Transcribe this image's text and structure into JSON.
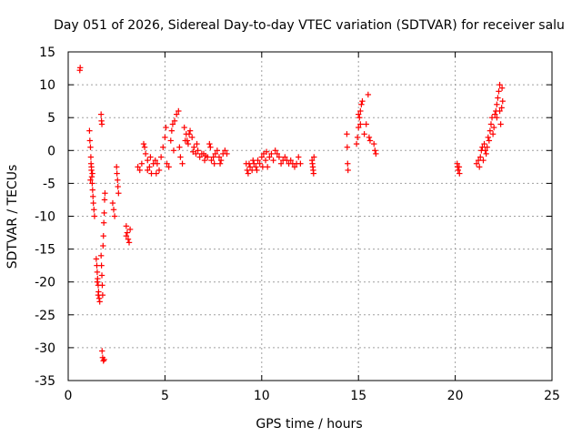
{
  "chart_data": {
    "type": "scatter",
    "title": "Day 051 of 2026, Sidereal Day-to-day VTEC variation (SDTVAR) for receiver salu",
    "xlabel": "GPS time / hours",
    "ylabel": "SDTVAR / TECUs",
    "xlim": [
      0,
      25
    ],
    "ylim": [
      -35,
      15
    ],
    "xticks": [
      0,
      5,
      10,
      15,
      20,
      25
    ],
    "yticks": [
      15,
      10,
      5,
      0,
      -5,
      -10,
      -15,
      -20,
      -25,
      -30,
      -35
    ],
    "grid": true,
    "marker": "+",
    "color": "#ff0000",
    "series": [
      {
        "name": "SDTVAR",
        "points": [
          [
            0.6,
            12.2
          ],
          [
            0.62,
            12.6
          ],
          [
            1.1,
            3.0
          ],
          [
            1.12,
            1.5
          ],
          [
            1.15,
            0.5
          ],
          [
            1.17,
            -1.0
          ],
          [
            1.18,
            -2.0
          ],
          [
            1.2,
            -3.0
          ],
          [
            1.22,
            -4.0
          ],
          [
            1.24,
            -5.0
          ],
          [
            1.26,
            -6.0
          ],
          [
            1.28,
            -7.0
          ],
          [
            1.3,
            -8.0
          ],
          [
            1.33,
            -9.0
          ],
          [
            1.36,
            -10.0
          ],
          [
            1.2,
            -2.5
          ],
          [
            1.25,
            -3.5
          ],
          [
            1.15,
            -4.5
          ],
          [
            1.45,
            -16.5
          ],
          [
            1.48,
            -17.5
          ],
          [
            1.5,
            -18.5
          ],
          [
            1.52,
            -19.5
          ],
          [
            1.55,
            -20.5
          ],
          [
            1.57,
            -21.5
          ],
          [
            1.6,
            -22.5
          ],
          [
            1.63,
            -23.0
          ],
          [
            1.55,
            -22.0
          ],
          [
            1.5,
            -20.0
          ],
          [
            1.7,
            5.5
          ],
          [
            1.72,
            4.5
          ],
          [
            1.74,
            4.0
          ],
          [
            1.7,
            -16.0
          ],
          [
            1.72,
            -17.5
          ],
          [
            1.74,
            -19.0
          ],
          [
            1.76,
            -20.5
          ],
          [
            1.78,
            -22.0
          ],
          [
            1.8,
            -14.5
          ],
          [
            1.82,
            -13.0
          ],
          [
            1.84,
            -11.0
          ],
          [
            1.86,
            -9.5
          ],
          [
            1.88,
            -7.5
          ],
          [
            1.9,
            -6.5
          ],
          [
            1.75,
            -30.5
          ],
          [
            1.78,
            -31.5
          ],
          [
            1.82,
            -32.0
          ],
          [
            1.86,
            -31.8
          ],
          [
            2.3,
            -8.0
          ],
          [
            2.35,
            -9.0
          ],
          [
            2.4,
            -10.0
          ],
          [
            2.5,
            -2.5
          ],
          [
            2.52,
            -3.5
          ],
          [
            2.55,
            -4.5
          ],
          [
            2.57,
            -5.5
          ],
          [
            2.6,
            -6.5
          ],
          [
            3.0,
            -11.5
          ],
          [
            3.05,
            -12.5
          ],
          [
            3.1,
            -13.5
          ],
          [
            3.15,
            -14.0
          ],
          [
            3.0,
            -13.0
          ],
          [
            3.2,
            -12.0
          ],
          [
            3.6,
            -2.5
          ],
          [
            3.7,
            -3.0
          ],
          [
            3.8,
            -2.0
          ],
          [
            3.9,
            1.0
          ],
          [
            3.95,
            0.5
          ],
          [
            4.0,
            -0.5
          ],
          [
            4.1,
            -1.5
          ],
          [
            4.2,
            -2.5
          ],
          [
            4.3,
            -3.5
          ],
          [
            4.4,
            -2.0
          ],
          [
            4.5,
            -1.5
          ],
          [
            4.6,
            -2.0
          ],
          [
            4.7,
            -3.0
          ],
          [
            4.8,
            -1.0
          ],
          [
            4.9,
            0.5
          ],
          [
            5.0,
            2.0
          ],
          [
            5.05,
            3.5
          ],
          [
            5.1,
            -2.0
          ],
          [
            5.2,
            -2.5
          ],
          [
            5.3,
            1.5
          ],
          [
            5.35,
            3.0
          ],
          [
            5.4,
            4.0
          ],
          [
            5.5,
            4.5
          ],
          [
            5.6,
            5.5
          ],
          [
            5.7,
            6.0
          ],
          [
            5.75,
            0.5
          ],
          [
            5.8,
            -1.0
          ],
          [
            5.9,
            -2.0
          ],
          [
            4.1,
            -3.0
          ],
          [
            4.25,
            -1.0
          ],
          [
            4.55,
            -3.5
          ],
          [
            5.45,
            0.0
          ],
          [
            6.0,
            3.5
          ],
          [
            6.1,
            2.5
          ],
          [
            6.15,
            1.5
          ],
          [
            6.2,
            1.0
          ],
          [
            6.3,
            3.0
          ],
          [
            6.4,
            2.0
          ],
          [
            6.5,
            0.5
          ],
          [
            6.6,
            -0.5
          ],
          [
            6.7,
            0.0
          ],
          [
            6.8,
            -1.0
          ],
          [
            6.9,
            -0.5
          ],
          [
            7.0,
            -0.5
          ],
          [
            7.1,
            -0.8
          ],
          [
            7.2,
            -1.0
          ],
          [
            7.3,
            1.0
          ],
          [
            7.4,
            -1.5
          ],
          [
            7.5,
            -1.0
          ],
          [
            7.6,
            -0.5
          ],
          [
            7.7,
            0.0
          ],
          [
            7.8,
            -1.0
          ],
          [
            7.9,
            -1.5
          ],
          [
            8.0,
            -0.5
          ],
          [
            8.1,
            0.0
          ],
          [
            8.2,
            -0.5
          ],
          [
            6.05,
            1.5
          ],
          [
            6.25,
            2.5
          ],
          [
            6.45,
            -0.2
          ],
          [
            6.65,
            1.0
          ],
          [
            7.05,
            -1.5
          ],
          [
            7.35,
            0.5
          ],
          [
            7.55,
            -2.0
          ],
          [
            7.85,
            -2.0
          ],
          [
            9.2,
            -2.0
          ],
          [
            9.25,
            -3.0
          ],
          [
            9.3,
            -3.5
          ],
          [
            9.4,
            -2.5
          ],
          [
            9.5,
            -3.0
          ],
          [
            9.6,
            -2.0
          ],
          [
            9.7,
            -2.5
          ],
          [
            9.8,
            -1.5
          ],
          [
            9.9,
            -2.0
          ],
          [
            10.0,
            -1.0
          ],
          [
            10.1,
            -0.5
          ],
          [
            10.2,
            -1.5
          ],
          [
            10.3,
            -2.5
          ],
          [
            10.4,
            -1.0
          ],
          [
            10.5,
            -0.5
          ],
          [
            10.6,
            -1.5
          ],
          [
            10.7,
            0.0
          ],
          [
            10.8,
            -0.5
          ],
          [
            10.9,
            -1.0
          ],
          [
            11.0,
            -2.0
          ],
          [
            11.1,
            -1.5
          ],
          [
            11.2,
            -1.0
          ],
          [
            11.3,
            -1.5
          ],
          [
            11.4,
            -2.0
          ],
          [
            11.5,
            -1.5
          ],
          [
            11.6,
            -2.0
          ],
          [
            11.7,
            -2.5
          ],
          [
            11.8,
            -2.0
          ],
          [
            11.9,
            -1.0
          ],
          [
            12.0,
            -2.0
          ],
          [
            9.35,
            -2.0
          ],
          [
            9.55,
            -1.5
          ],
          [
            9.75,
            -3.0
          ],
          [
            10.05,
            -2.5
          ],
          [
            10.25,
            -0.2
          ],
          [
            12.6,
            -1.5
          ],
          [
            12.62,
            -2.0
          ],
          [
            12.64,
            -2.5
          ],
          [
            12.66,
            -3.0
          ],
          [
            12.68,
            -3.5
          ],
          [
            12.7,
            -1.0
          ],
          [
            14.4,
            2.5
          ],
          [
            14.42,
            0.5
          ],
          [
            14.44,
            -2.0
          ],
          [
            14.46,
            -3.0
          ],
          [
            14.9,
            1.0
          ],
          [
            14.95,
            2.0
          ],
          [
            15.0,
            3.5
          ],
          [
            15.05,
            5.0
          ],
          [
            15.1,
            6.0
          ],
          [
            15.15,
            7.0
          ],
          [
            15.2,
            7.5
          ],
          [
            15.3,
            2.5
          ],
          [
            15.4,
            4.0
          ],
          [
            15.5,
            8.5
          ],
          [
            15.55,
            2.0
          ],
          [
            15.6,
            1.5
          ],
          [
            15.8,
            1.0
          ],
          [
            15.85,
            0.0
          ],
          [
            15.9,
            -0.5
          ],
          [
            15.0,
            5.5
          ],
          [
            15.1,
            4.0
          ],
          [
            20.1,
            -2.0
          ],
          [
            20.12,
            -2.5
          ],
          [
            20.15,
            -3.0
          ],
          [
            20.2,
            -2.5
          ],
          [
            20.22,
            -3.5
          ],
          [
            21.1,
            -2.0
          ],
          [
            21.2,
            -1.5
          ],
          [
            21.3,
            -1.0
          ],
          [
            21.35,
            0.0
          ],
          [
            21.4,
            0.5
          ],
          [
            21.5,
            1.0
          ],
          [
            21.55,
            0.0
          ],
          [
            21.6,
            -0.5
          ],
          [
            21.7,
            2.0
          ],
          [
            21.8,
            3.0
          ],
          [
            21.85,
            4.0
          ],
          [
            21.9,
            5.0
          ],
          [
            22.0,
            3.5
          ],
          [
            22.05,
            5.5
          ],
          [
            22.1,
            6.0
          ],
          [
            22.15,
            7.0
          ],
          [
            22.2,
            8.0
          ],
          [
            22.25,
            9.0
          ],
          [
            22.3,
            10.0
          ],
          [
            22.35,
            4.0
          ],
          [
            22.4,
            6.5
          ],
          [
            22.45,
            7.5
          ],
          [
            21.25,
            -2.5
          ],
          [
            21.45,
            -1.5
          ],
          [
            21.65,
            0.5
          ],
          [
            21.75,
            1.5
          ],
          [
            21.95,
            2.5
          ],
          [
            22.15,
            5.0
          ],
          [
            22.3,
            6.0
          ],
          [
            22.42,
            9.5
          ]
        ]
      }
    ]
  }
}
